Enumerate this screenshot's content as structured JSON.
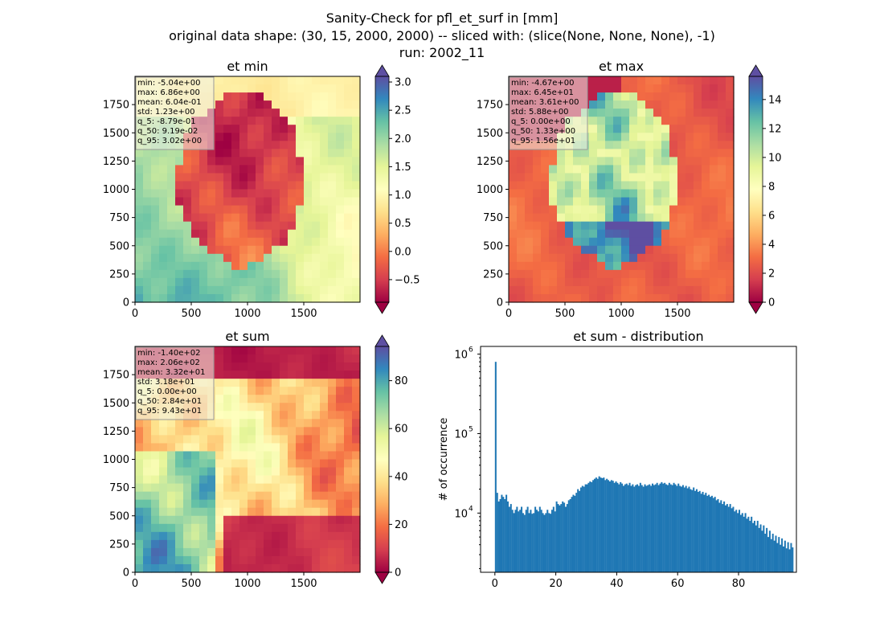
{
  "suptitle": {
    "line1": "Sanity-Check for pfl_et_surf in [mm]",
    "line2": "original data shape: (30, 15, 2000, 2000) -- sliced with: (slice(None, None, None), -1)",
    "line3": "run: 2002_11"
  },
  "colors": {
    "hist_bar": "#1f77b4",
    "stats_box_bg": "#f0f0e6",
    "colormap": "Spectral",
    "colormap_stops": [
      "#9e0142",
      "#d53e4f",
      "#f46d43",
      "#fdae61",
      "#fee08b",
      "#ffffbf",
      "#e6f598",
      "#abdda4",
      "#66c2a5",
      "#3288bd",
      "#5e4fa2"
    ]
  },
  "chart_data": [
    {
      "type": "heatmap",
      "title": "et min",
      "x_ticks": [
        0,
        500,
        1000,
        1500
      ],
      "y_ticks": [
        0,
        250,
        500,
        750,
        1000,
        1250,
        1500,
        1750
      ],
      "xlim": [
        0,
        2000
      ],
      "ylim": [
        0,
        2000
      ],
      "colorbar": {
        "range": [
          -0.9,
          3.1
        ],
        "ticks": [
          -0.5,
          0.0,
          0.5,
          1.0,
          1.5,
          2.0,
          2.5,
          3.0
        ],
        "tick_labels": [
          "−0.5",
          "0.0",
          "0.5",
          "1.0",
          "1.5",
          "2.0",
          "2.5",
          "3.0"
        ],
        "extend": "both"
      },
      "stats": [
        "min: -5.04e+00",
        "max: 6.86e+00",
        "mean: 6.04e-01",
        "std: 1.23e+00",
        "q_5: -8.79e-01",
        "q_50: 9.19e-02",
        "q_95: 3.02e+00"
      ]
    },
    {
      "type": "heatmap",
      "title": "et max",
      "x_ticks": [
        0,
        500,
        1000,
        1500
      ],
      "y_ticks": [
        0,
        250,
        500,
        750,
        1000,
        1250,
        1500,
        1750
      ],
      "xlim": [
        0,
        2000
      ],
      "ylim": [
        0,
        2000
      ],
      "colorbar": {
        "range": [
          0,
          15.6
        ],
        "ticks": [
          0,
          2,
          4,
          6,
          8,
          10,
          12,
          14
        ],
        "tick_labels": [
          "0",
          "2",
          "4",
          "6",
          "8",
          "10",
          "12",
          "14"
        ],
        "extend": "both"
      },
      "stats": [
        "min: -4.67e+00",
        "max: 6.45e+01",
        "mean: 3.61e+00",
        "std: 5.88e+00",
        "q_5: 0.00e+00",
        "q_50: 1.33e+00",
        "q_95: 1.56e+01"
      ]
    },
    {
      "type": "heatmap",
      "title": "et sum",
      "x_ticks": [
        0,
        500,
        1000,
        1500
      ],
      "y_ticks": [
        0,
        250,
        500,
        750,
        1000,
        1250,
        1500,
        1750
      ],
      "xlim": [
        0,
        2000
      ],
      "ylim": [
        0,
        2000
      ],
      "colorbar": {
        "range": [
          0,
          94.3
        ],
        "ticks": [
          0,
          20,
          40,
          60,
          80
        ],
        "tick_labels": [
          "0",
          "20",
          "40",
          "60",
          "80"
        ],
        "extend": "both"
      },
      "stats": [
        "min: -1.40e+02",
        "max: 2.06e+02",
        "mean: 3.32e+01",
        "std: 3.18e+01",
        "q_5: 0.00e+00",
        "q_50: 2.84e+01",
        "q_95: 9.43e+01"
      ]
    },
    {
      "type": "bar",
      "title": "et sum - distribution",
      "xlabel": "",
      "ylabel": "# of occurrence",
      "yscale": "log",
      "xlim": [
        -4.7,
        99
      ],
      "ylim": [
        1800,
        1250000
      ],
      "x_ticks": [
        0,
        20,
        40,
        60,
        80
      ],
      "y_ticks": [
        10000,
        100000,
        1000000
      ],
      "y_tick_labels": [
        [
          "10",
          "4"
        ],
        [
          "10",
          "5"
        ],
        [
          "10",
          "6"
        ]
      ],
      "bin_start": 0,
      "bin_width": 0.5,
      "values": [
        800000,
        18000,
        14000,
        15000,
        17000,
        16000,
        15000,
        17000,
        14000,
        12000,
        13000,
        11000,
        10000,
        11000,
        12000,
        10500,
        11000,
        12000,
        10000,
        9500,
        11000,
        12000,
        10000,
        11000,
        9800,
        10000,
        12000,
        11000,
        10500,
        12000,
        11000,
        10000,
        9500,
        10000,
        11000,
        10000,
        9800,
        11000,
        12000,
        10500,
        14000,
        13000,
        12500,
        13000,
        14000,
        13500,
        12000,
        13000,
        14500,
        15000,
        16000,
        17000,
        16500,
        18000,
        20000,
        19000,
        21000,
        22000,
        21500,
        23000,
        23000,
        24000,
        25000,
        24500,
        26000,
        27000,
        28000,
        27000,
        29000,
        28000,
        27500,
        28000,
        26000,
        27000,
        26000,
        25000,
        26000,
        25500,
        24000,
        25000,
        24000,
        23000,
        24500,
        23500,
        22000,
        23000,
        23500,
        22500,
        24000,
        22000,
        23000,
        21500,
        22500,
        23000,
        22000,
        24000,
        22500,
        21500,
        23000,
        22000,
        22500,
        23000,
        22000,
        23500,
        22500,
        23000,
        24000,
        22500,
        23500,
        24500,
        23500,
        24000,
        23000,
        22500,
        24000,
        23000,
        22500,
        24000,
        23000,
        22000,
        23500,
        22000,
        21500,
        22500,
        21000,
        22000,
        20500,
        21500,
        20000,
        19500,
        21000,
        19000,
        20000,
        18500,
        19000,
        17500,
        18500,
        17000,
        18000,
        16500,
        17000,
        16000,
        16500,
        15500,
        16000,
        14500,
        15000,
        13500,
        14500,
        13000,
        14000,
        12500,
        13000,
        12000,
        13000,
        11500,
        12000,
        10500,
        11000,
        10000,
        11000,
        9500,
        10000,
        9000,
        10000,
        8500,
        9000,
        8000,
        9000,
        7500,
        8000,
        7000,
        8000,
        6500,
        7200,
        6000,
        7000,
        5500,
        6500,
        5000,
        6000,
        4700,
        5500,
        4500,
        5200,
        4200,
        5000,
        4000,
        4800,
        3800,
        4500,
        3600,
        4300,
        3500,
        4200,
        3700
      ]
    }
  ]
}
